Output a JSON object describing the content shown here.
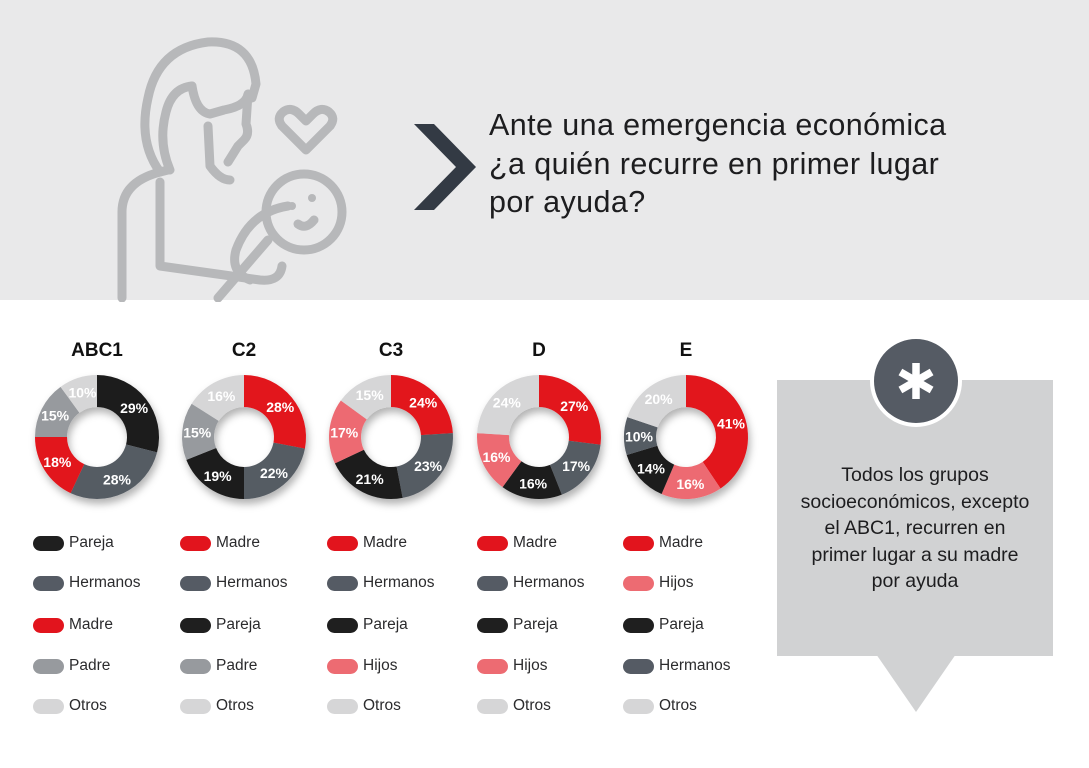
{
  "header": {
    "question_lines": [
      "Ante una emergencia económica",
      "¿a quién recurre en primer lugar",
      "por ayuda?"
    ]
  },
  "icons": {
    "illustration": "mother-holding-baby-icon",
    "heart": "heart-icon",
    "chevron": "chevron-right-icon",
    "asterisk": "asterisk-icon"
  },
  "colors": {
    "Pareja": "#1f1f1f",
    "Hermanos": "#555b64",
    "Madre": "#e2141d",
    "Padre": "#979a9e",
    "Otros": "#d6d6d7",
    "Hijos": "#ed6b72",
    "header_bg": "#e9e9ea",
    "callout_bg": "#d1d2d3"
  },
  "chart_data": [
    {
      "type": "pie",
      "title": "ABC1",
      "slices": [
        {
          "label": "Pareja",
          "value": 29
        },
        {
          "label": "Hermanos",
          "value": 28
        },
        {
          "label": "Madre",
          "value": 18
        },
        {
          "label": "Padre",
          "value": 15
        },
        {
          "label": "Otros",
          "value": 10
        }
      ],
      "legend": [
        "Pareja",
        "Hermanos",
        "Madre",
        "Padre",
        "Otros"
      ]
    },
    {
      "type": "pie",
      "title": "C2",
      "slices": [
        {
          "label": "Madre",
          "value": 28
        },
        {
          "label": "Hermanos",
          "value": 22
        },
        {
          "label": "Pareja",
          "value": 19
        },
        {
          "label": "Padre",
          "value": 15
        },
        {
          "label": "Otros",
          "value": 16
        }
      ],
      "legend": [
        "Madre",
        "Hermanos",
        "Pareja",
        "Padre",
        "Otros"
      ]
    },
    {
      "type": "pie",
      "title": "C3",
      "slices": [
        {
          "label": "Madre",
          "value": 24
        },
        {
          "label": "Hermanos",
          "value": 23
        },
        {
          "label": "Pareja",
          "value": 21
        },
        {
          "label": "Hijos",
          "value": 17
        },
        {
          "label": "Otros",
          "value": 15
        }
      ],
      "legend": [
        "Madre",
        "Hermanos",
        "Pareja",
        "Hijos",
        "Otros"
      ]
    },
    {
      "type": "pie",
      "title": "D",
      "slices": [
        {
          "label": "Madre",
          "value": 27
        },
        {
          "label": "Hermanos",
          "value": 17
        },
        {
          "label": "Pareja",
          "value": 16
        },
        {
          "label": "Hijos",
          "value": 16
        },
        {
          "label": "Otros",
          "value": 24
        }
      ],
      "legend": [
        "Madre",
        "Hermanos",
        "Pareja",
        "Hijos",
        "Otros"
      ]
    },
    {
      "type": "pie",
      "title": "E",
      "slices": [
        {
          "label": "Madre",
          "value": 41
        },
        {
          "label": "Hijos",
          "value": 16
        },
        {
          "label": "Pareja",
          "value": 14
        },
        {
          "label": "Hermanos",
          "value": 10
        },
        {
          "label": "Otros",
          "value": 20
        }
      ],
      "legend": [
        "Madre",
        "Hijos",
        "Pareja",
        "Hermanos",
        "Otros"
      ]
    }
  ],
  "callout": {
    "text_lines": [
      "Todos los grupos",
      "socioeconómicos, excepto",
      "el ABC1, recurren en",
      "primer lugar a su madre",
      "por ayuda"
    ]
  }
}
